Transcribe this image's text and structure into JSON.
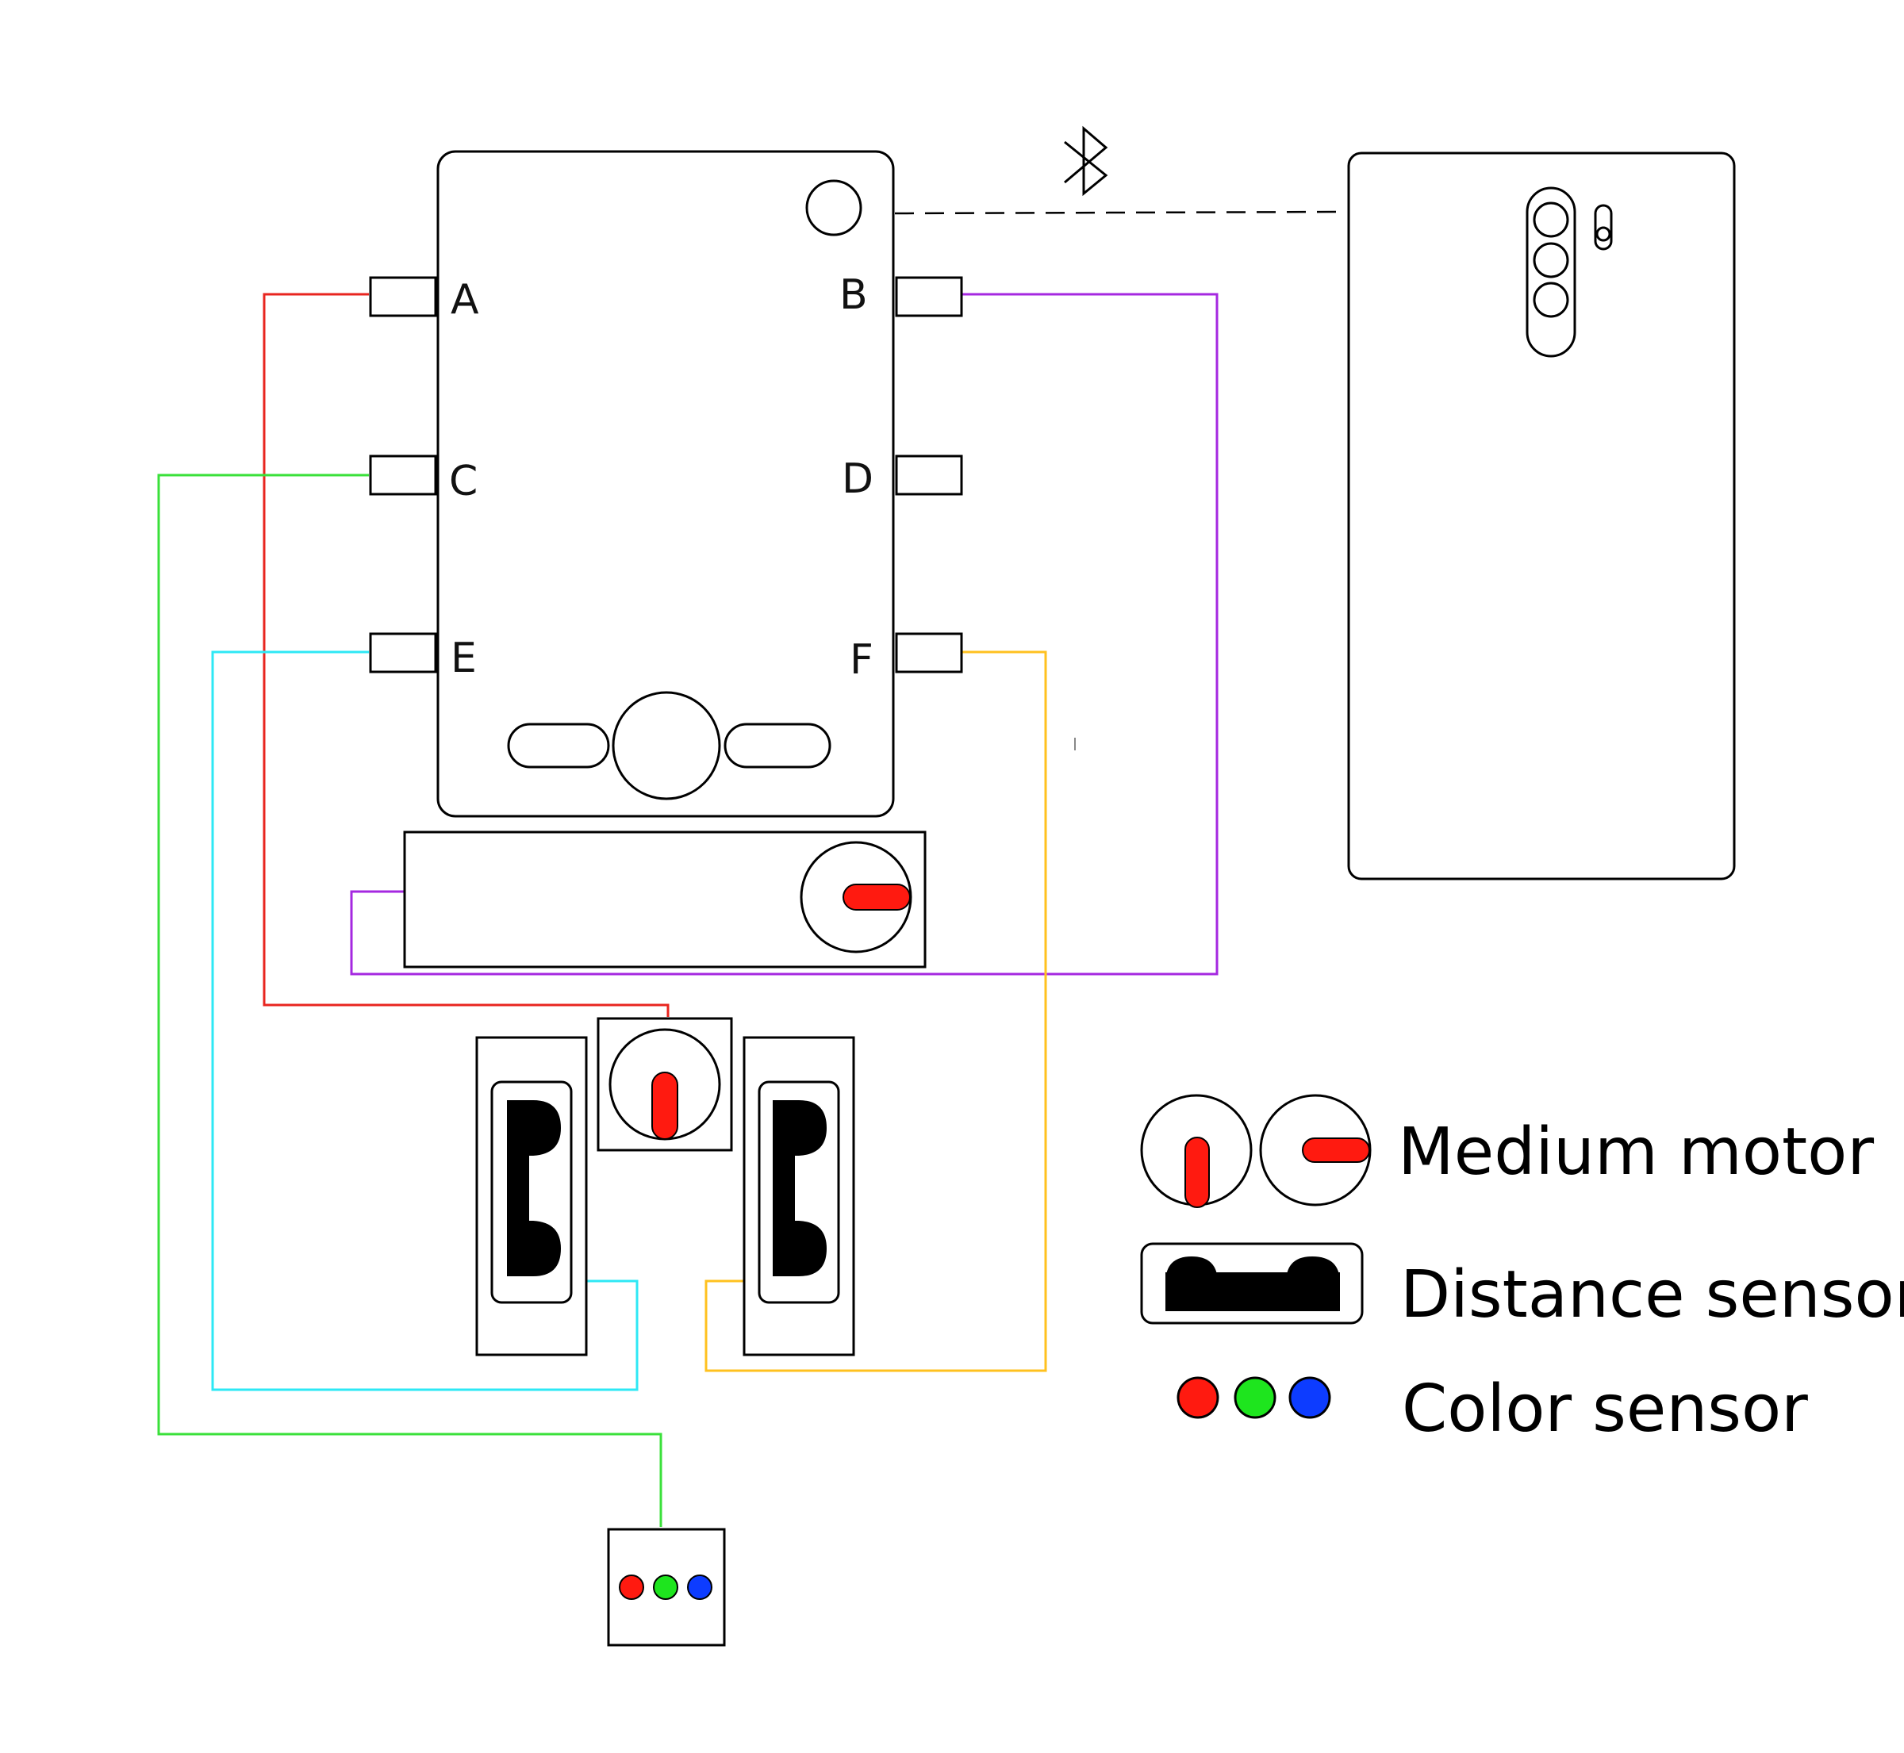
{
  "hub": {
    "ports": [
      {
        "id": "A",
        "label": "A"
      },
      {
        "id": "B",
        "label": "B"
      },
      {
        "id": "C",
        "label": "C"
      },
      {
        "id": "D",
        "label": "D"
      },
      {
        "id": "E",
        "label": "E"
      },
      {
        "id": "F",
        "label": "F"
      }
    ]
  },
  "connection": {
    "type": "bluetooth",
    "icon": "bluetooth-icon"
  },
  "legend": {
    "medium_motor": "Medium motor",
    "distance_sensor": "Distance sensor",
    "color_sensor": "Color sensor"
  },
  "wire_colors": {
    "A": "#e8251f",
    "B": "#a528e0",
    "C": "#3ae03a",
    "E": "#2ee8f5",
    "F": "#ffc11f"
  },
  "motor_marker_color": "#ff1a10",
  "sensor_colors": [
    "#ff1a10",
    "#1ee51e",
    "#0d3cff"
  ]
}
